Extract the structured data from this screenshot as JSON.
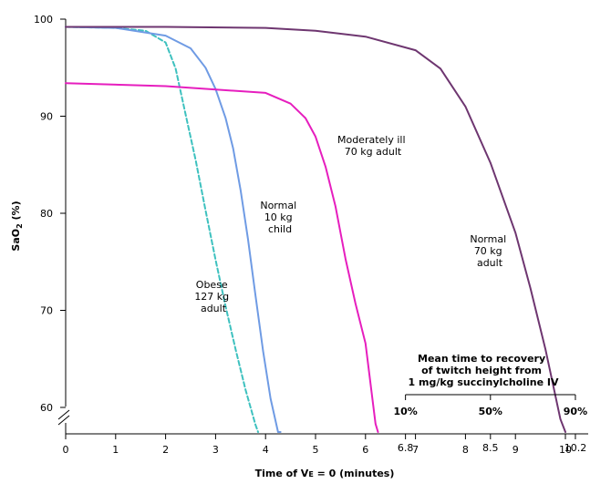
{
  "chart_data": {
    "type": "line",
    "title": "",
    "xlabel": "Time of V",
    "xlabel_sub": "E",
    "xlabel_tail": " = 0 (minutes)",
    "ylabel": "SaO",
    "ylabel_sub": "2",
    "ylabel_tail": " (%)",
    "xlim": [
      0,
      10.5
    ],
    "ylim": [
      58,
      100
    ],
    "x_ticks": [
      "0",
      "1",
      "2",
      "3",
      "4",
      "5",
      "6",
      "7",
      "8",
      "9",
      "10"
    ],
    "y_ticks": [
      "60",
      "70",
      "80",
      "90",
      "100"
    ],
    "grid": false,
    "series": [
      {
        "name": "Obese 127 kg adult",
        "label_lines": [
          "Obese",
          "127 kg",
          "adult"
        ],
        "color": "#3ec1bf",
        "dashed": true,
        "x": [
          0,
          1.0,
          1.6,
          2.0,
          2.2,
          2.4,
          2.6,
          2.8,
          3.0,
          3.2,
          3.4,
          3.6,
          3.8,
          3.85
        ],
        "y": [
          99.2,
          99.1,
          98.8,
          97.6,
          94.9,
          90.2,
          85.5,
          80.3,
          75.2,
          70.4,
          66.0,
          61.8,
          58.2,
          56.0
        ]
      },
      {
        "name": "Normal 10 kg child",
        "label_lines": [
          "Normal",
          "10 kg",
          "child"
        ],
        "color": "#6f9be4",
        "dashed": false,
        "x": [
          0,
          1.0,
          2.0,
          2.5,
          2.8,
          3.0,
          3.2,
          3.35,
          3.5,
          3.65,
          3.8,
          3.95,
          4.1,
          4.25,
          4.3
        ],
        "y": [
          99.2,
          99.1,
          98.3,
          97.0,
          95.0,
          92.8,
          89.8,
          86.7,
          82.4,
          77.3,
          71.5,
          65.8,
          60.9,
          56.5,
          56.0
        ]
      },
      {
        "name": "Moderately ill 70 kg adult",
        "label_lines": [
          "Moderately ill",
          "70 kg adult"
        ],
        "color": "#e61ebe",
        "dashed": false,
        "x": [
          0,
          2.0,
          4.0,
          4.5,
          4.8,
          5.0,
          5.2,
          5.4,
          5.6,
          5.8,
          6.0,
          6.2,
          6.25
        ],
        "y": [
          93.4,
          93.1,
          92.4,
          91.3,
          89.8,
          87.9,
          84.8,
          80.7,
          75.3,
          70.7,
          66.6,
          58.3,
          56.0
        ]
      },
      {
        "name": "Normal 70 kg adult",
        "label_lines": [
          "Normal",
          "70 kg",
          "adult"
        ],
        "color": "#6e3670",
        "dashed": false,
        "x": [
          0,
          2.0,
          4.0,
          5.0,
          6.0,
          7.0,
          7.5,
          8.0,
          8.5,
          9.0,
          9.3,
          9.6,
          9.9,
          10.0
        ],
        "y": [
          99.2,
          99.2,
          99.1,
          98.8,
          98.2,
          96.8,
          94.9,
          91.0,
          85.2,
          78.0,
          72.3,
          66.0,
          58.8,
          56.0
        ]
      }
    ],
    "recovery_legend": {
      "title_lines": [
        "Mean time to recovery",
        "of twitch height from",
        "1 mg/kg succinylcholine IV"
      ],
      "markers": [
        {
          "label": "10%",
          "x": 6.8,
          "x_label": "6.8"
        },
        {
          "label": "50%",
          "x": 8.5,
          "x_label": "8.5"
        },
        {
          "label": "90%",
          "x": 10.2,
          "x_label": "10.2"
        }
      ]
    }
  }
}
